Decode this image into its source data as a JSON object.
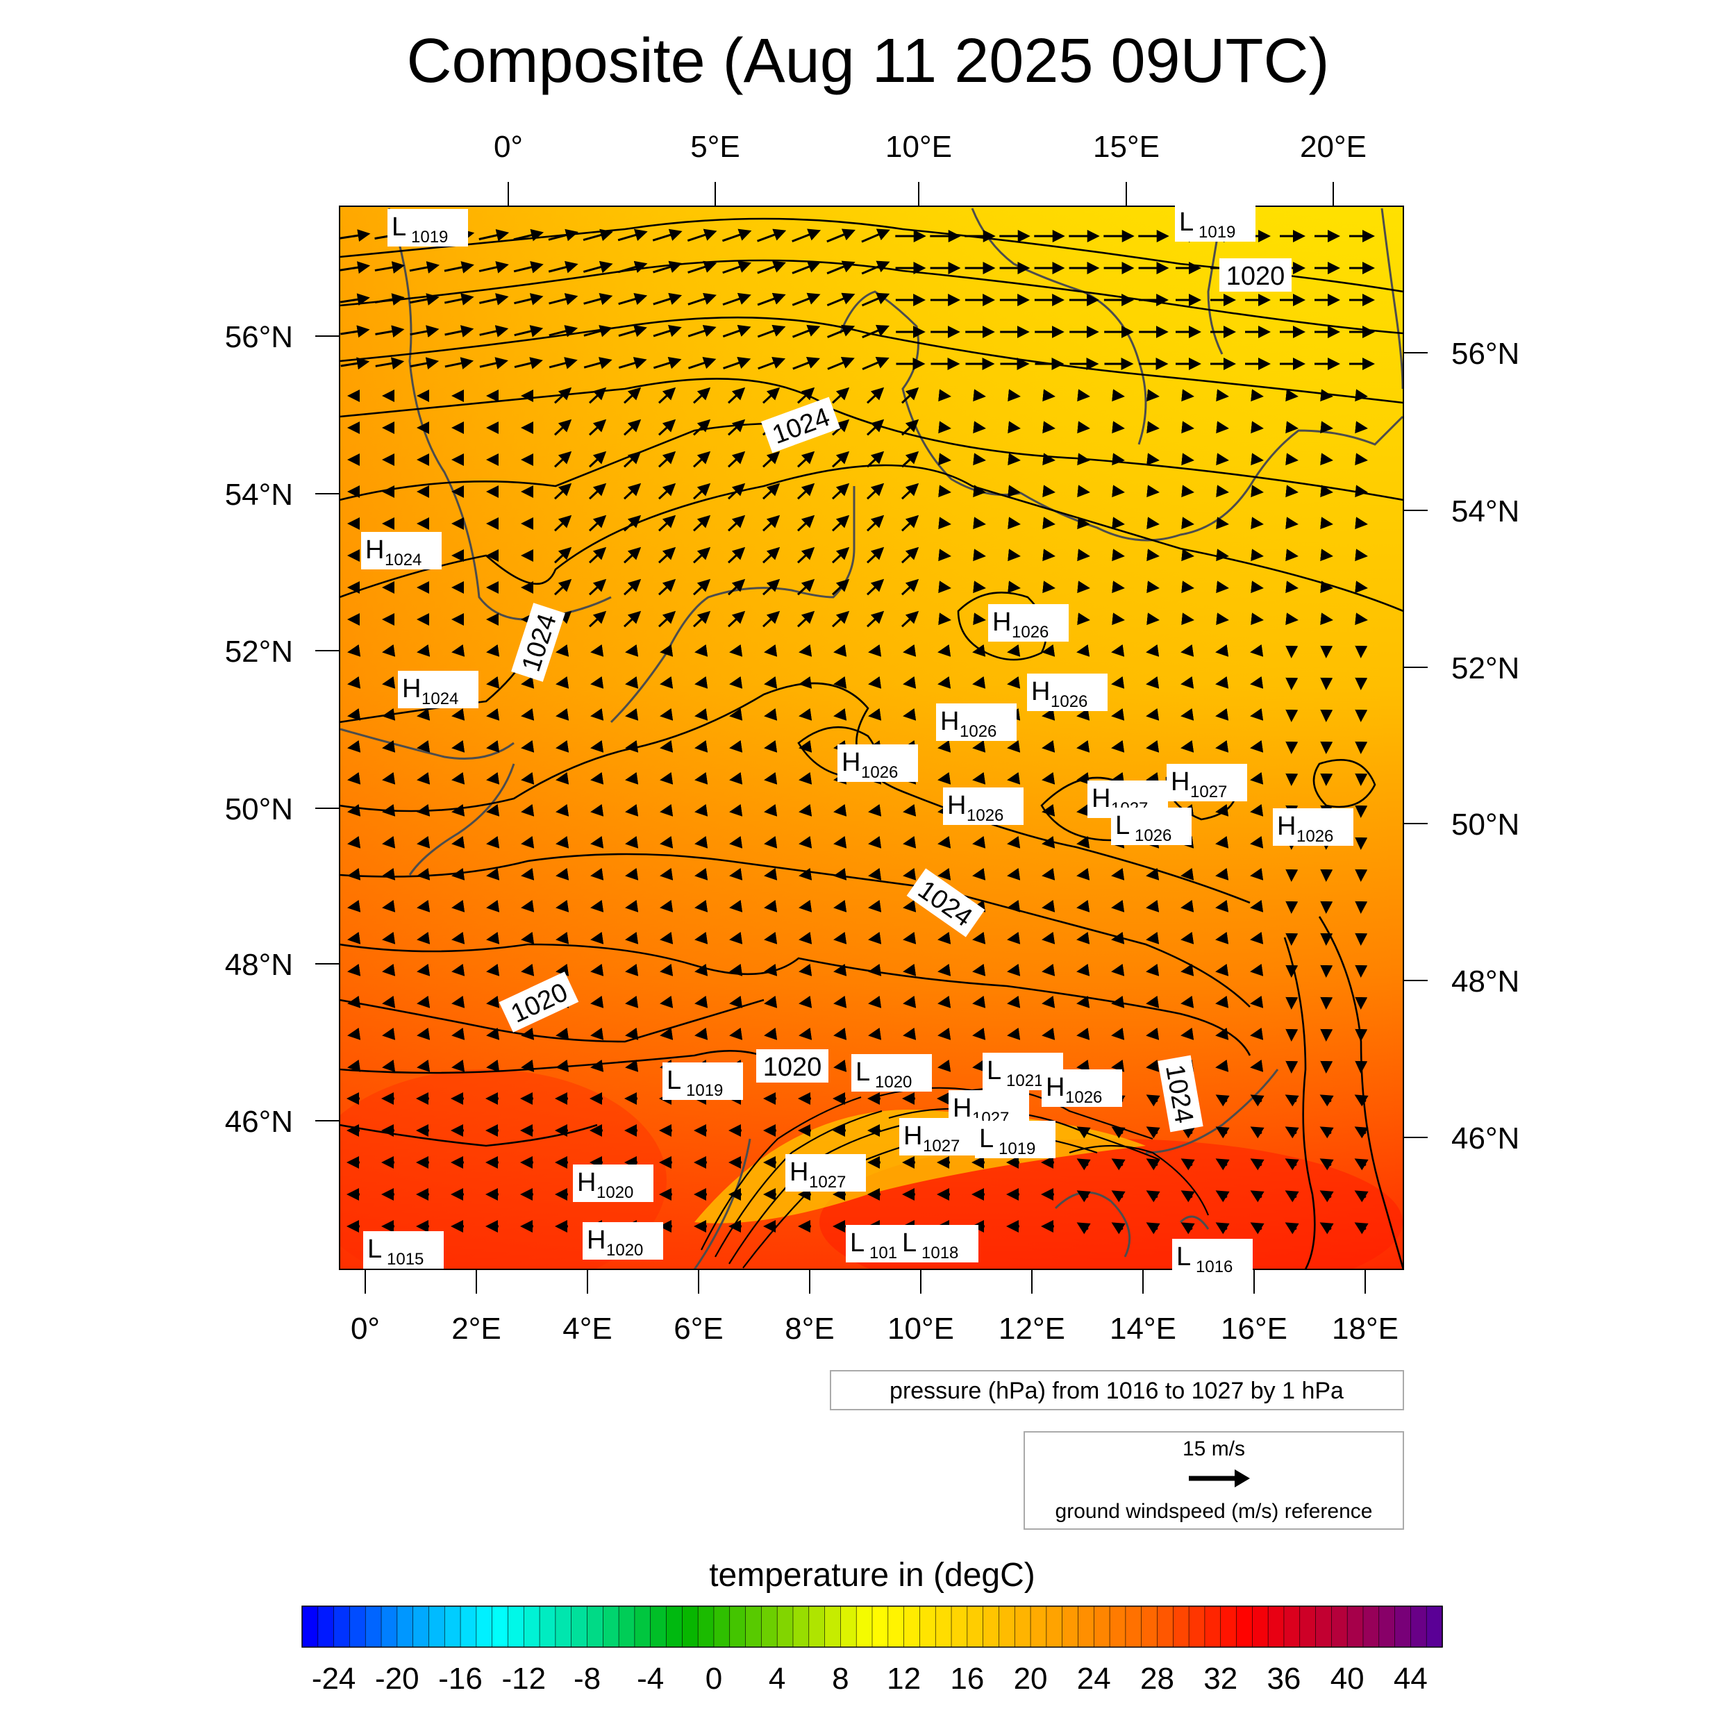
{
  "title": "Composite (Aug 11 2025 09UTC)",
  "map": {
    "region": "Western/Central Europe",
    "colors": {
      "coastline": "#4d4d4d",
      "contour": "#000000",
      "frame": "#000000"
    },
    "top_lon_labels": [
      "0°",
      "5°E",
      "10°E",
      "15°E",
      "20°E"
    ],
    "bottom_lon_labels": [
      "0°",
      "2°E",
      "4°E",
      "6°E",
      "8°E",
      "10°E",
      "12°E",
      "14°E",
      "16°E",
      "18°E"
    ],
    "left_lat_labels": [
      "56°N",
      "54°N",
      "52°N",
      "50°N",
      "48°N",
      "46°N"
    ],
    "right_lat_labels": [
      "56°N",
      "54°N",
      "52°N",
      "50°N",
      "48°N",
      "46°N"
    ],
    "isobar_labels": [
      "1020",
      "1024",
      "1024",
      "1024",
      "1020",
      "1020",
      "1024"
    ],
    "pressure_centers": [
      {
        "type": "L",
        "value": "1019"
      },
      {
        "type": "L",
        "value": "1019"
      },
      {
        "type": "H",
        "value": "1024"
      },
      {
        "type": "H",
        "value": "1024"
      },
      {
        "type": "H",
        "value": "1026"
      },
      {
        "type": "H",
        "value": "1026"
      },
      {
        "type": "H",
        "value": "1026"
      },
      {
        "type": "H",
        "value": "1026"
      },
      {
        "type": "H",
        "value": "1026"
      },
      {
        "type": "H",
        "value": "1027"
      },
      {
        "type": "H",
        "value": "1027"
      },
      {
        "type": "L",
        "value": "1026"
      },
      {
        "type": "H",
        "value": "1026"
      },
      {
        "type": "L",
        "value": "1019"
      },
      {
        "type": "L",
        "value": "1020"
      },
      {
        "type": "L",
        "value": "1021"
      },
      {
        "type": "H",
        "value": "1026"
      },
      {
        "type": "H",
        "value": "1027"
      },
      {
        "type": "H",
        "value": "1027"
      },
      {
        "type": "L",
        "value": "1019"
      },
      {
        "type": "H",
        "value": "1027"
      },
      {
        "type": "H",
        "value": "1020"
      },
      {
        "type": "H",
        "value": "1020"
      },
      {
        "type": "L",
        "value": "1015"
      },
      {
        "type": "L",
        "value": "101"
      },
      {
        "type": "L",
        "value": "1018"
      },
      {
        "type": "L",
        "value": "1016"
      }
    ]
  },
  "pressure_legend": "pressure (hPa) from 1016 to 1027 by 1 hPa",
  "wind_legend": {
    "speed": "15 m/s",
    "caption": "ground windspeed (m/s) reference"
  },
  "colorbar": {
    "title": "temperature in (degC)",
    "min": -26,
    "max": 46,
    "step": 1,
    "labels": [
      "-24",
      "-20",
      "-16",
      "-12",
      "-8",
      "-4",
      "0",
      "4",
      "8",
      "12",
      "16",
      "20",
      "24",
      "28",
      "32",
      "36",
      "40",
      "44"
    ],
    "stops": [
      "#0000ff",
      "#0096ff",
      "#00ffff",
      "#00dc8c",
      "#00b400",
      "#78d200",
      "#ffff00",
      "#ffd200",
      "#ffa000",
      "#ff6400",
      "#ff0000",
      "#b4003c",
      "#5a0096"
    ]
  }
}
